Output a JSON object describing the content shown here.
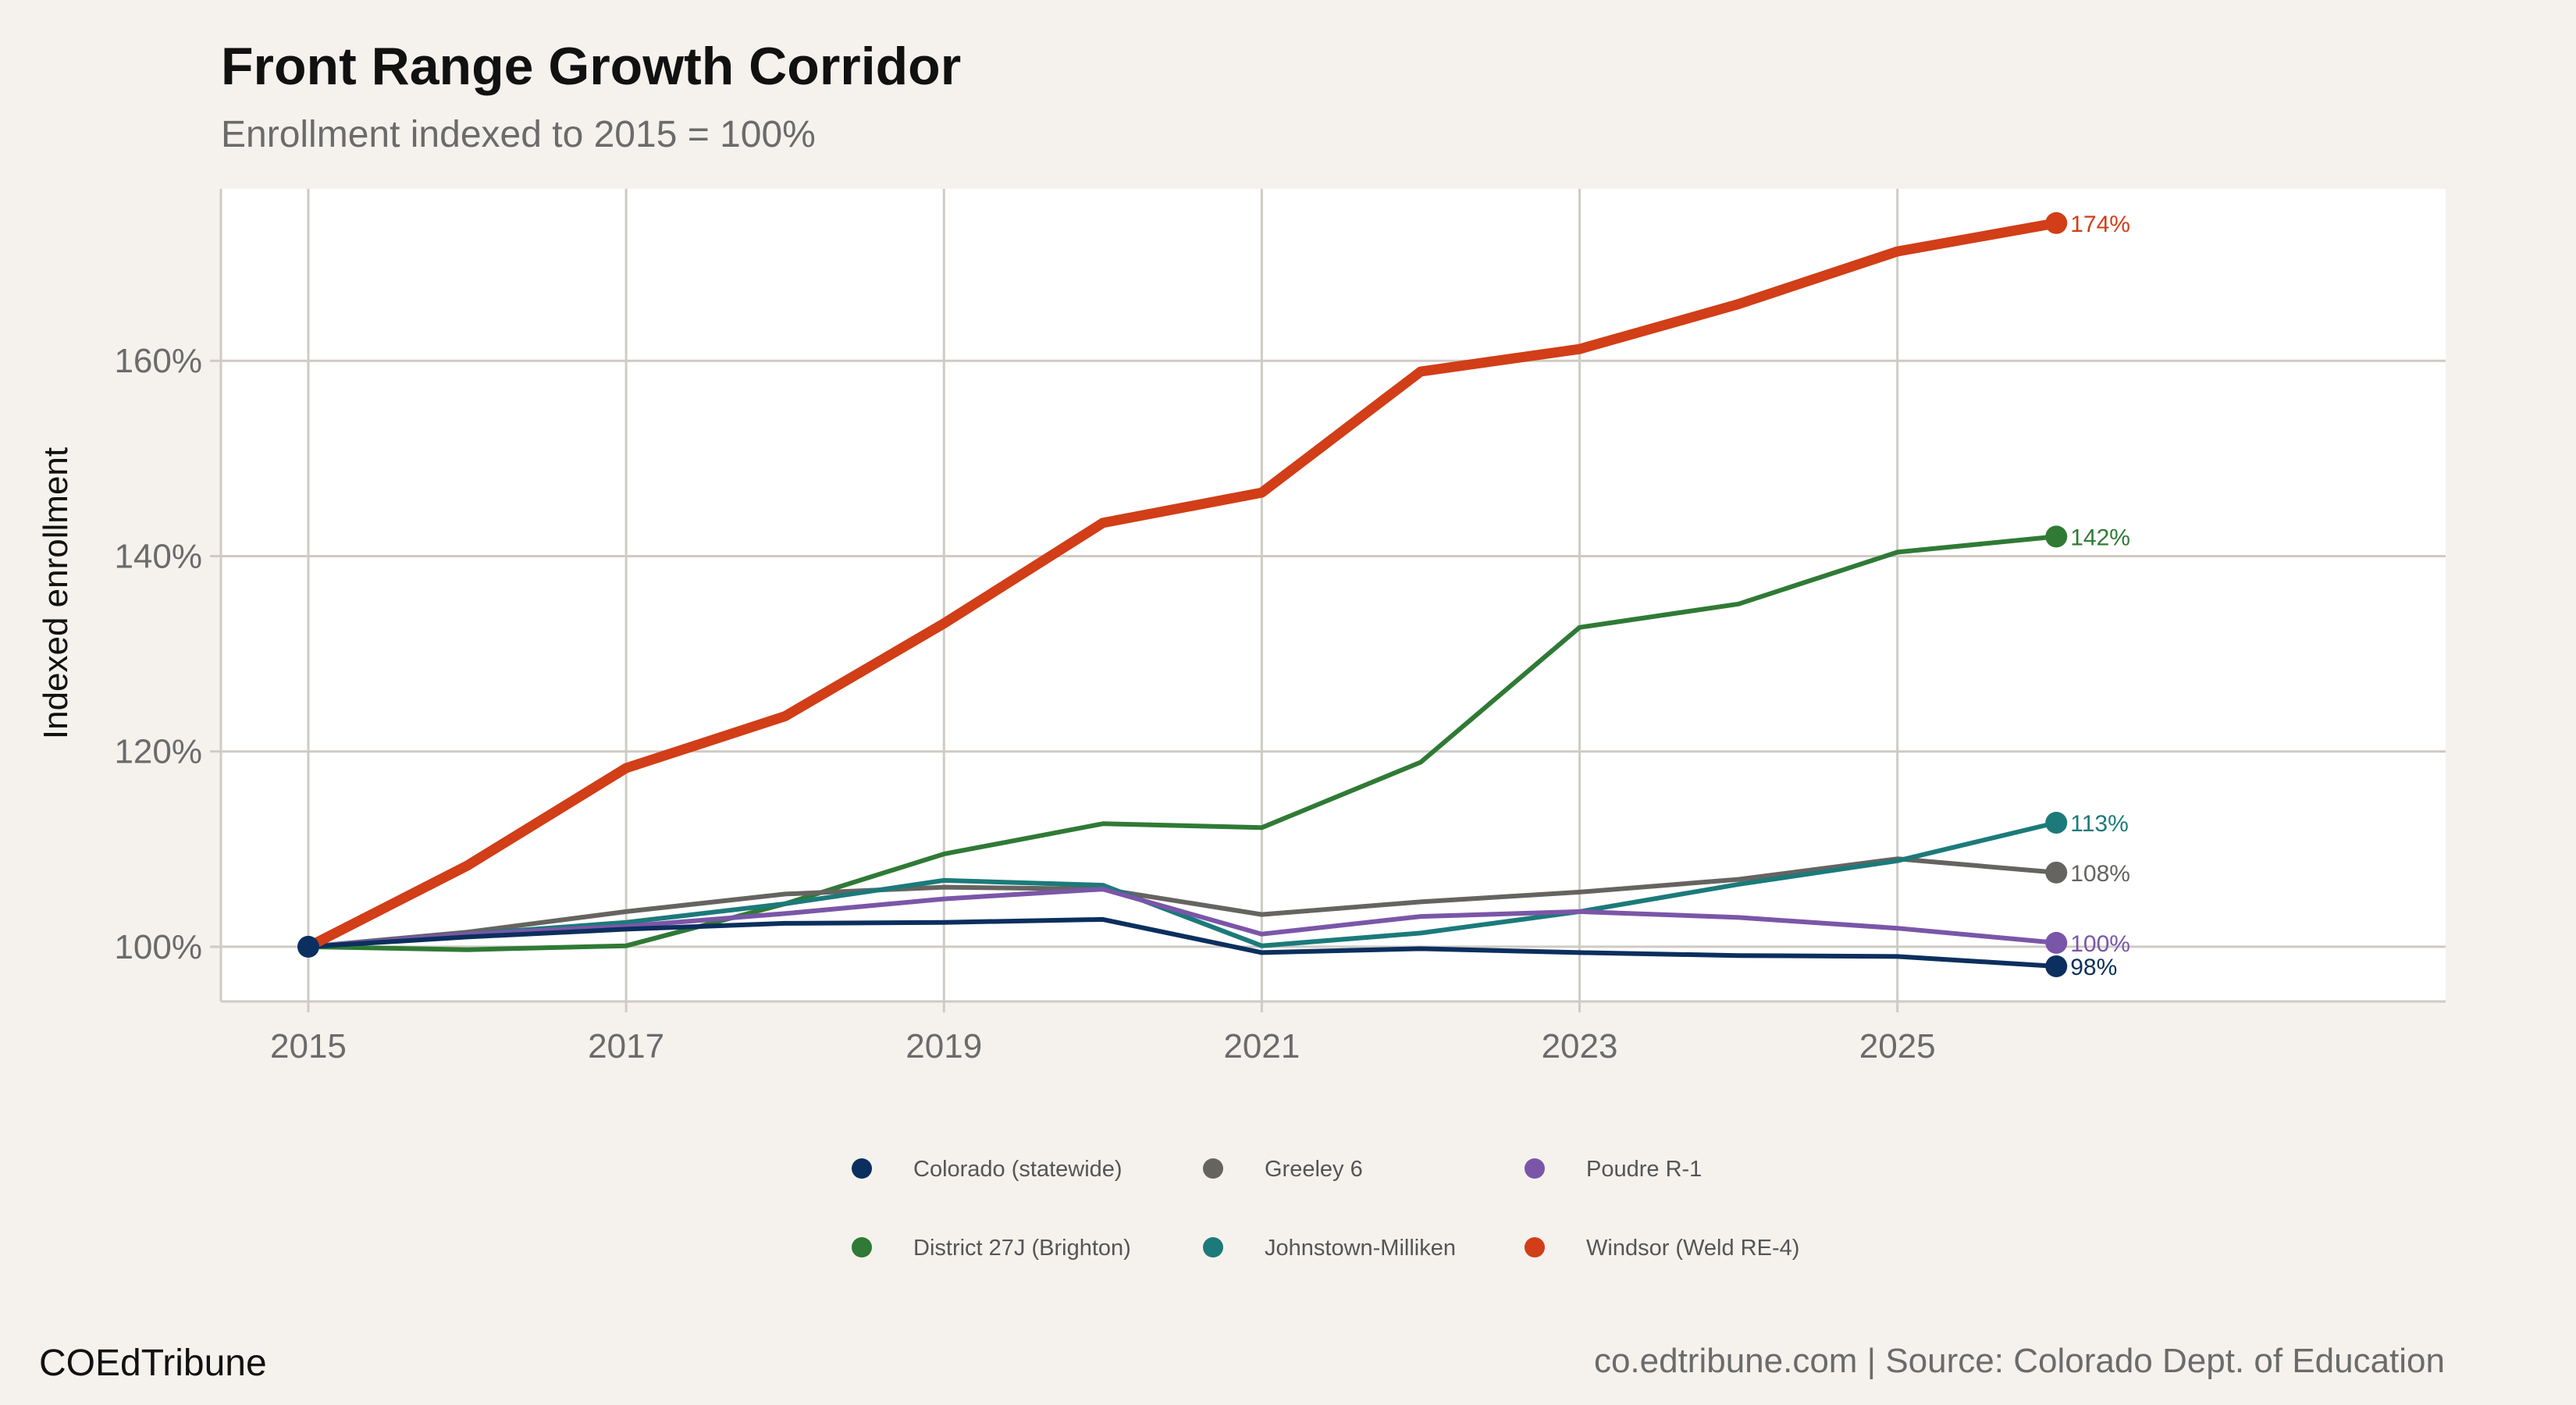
{
  "chart_data": {
    "type": "line",
    "title": "Front Range Growth Corridor",
    "subtitle": "Enrollment indexed to 2015 = 100%",
    "ylabel": "Indexed enrollment",
    "xlabel": "",
    "x": [
      2015,
      2016,
      2017,
      2018,
      2019,
      2020,
      2021,
      2022,
      2023,
      2024,
      2025,
      2026
    ],
    "xlim": [
      2014.45,
      2028.45
    ],
    "ylim": [
      94.4,
      177.6
    ],
    "x_ticks": [
      2015,
      2017,
      2019,
      2021,
      2023,
      2025
    ],
    "y_ticks": [
      100,
      120,
      140,
      160
    ],
    "x_tick_labels": [
      "2015",
      "2017",
      "2019",
      "2021",
      "2023",
      "2025"
    ],
    "y_tick_labels": [
      "100%",
      "120%",
      "140%",
      "160%"
    ],
    "grid": true,
    "legend_position": "bottom",
    "series": [
      {
        "name": "Colorado (statewide)",
        "color": "#0b2f5e",
        "values": [
          100,
          101.0,
          101.8,
          102.4,
          102.5,
          102.8,
          99.4,
          99.8,
          99.4,
          99.1,
          99.0,
          98.0
        ],
        "end_label": "98%"
      },
      {
        "name": "District 27J (Brighton)",
        "color": "#2f7a35",
        "values": [
          100,
          99.7,
          100.1,
          104.4,
          109.5,
          112.6,
          112.2,
          118.9,
          132.7,
          135.1,
          140.4,
          142.0
        ],
        "end_label": "142%"
      },
      {
        "name": "Greeley 6",
        "color": "#666460",
        "values": [
          100,
          101.5,
          103.6,
          105.4,
          106.1,
          105.9,
          103.3,
          104.6,
          105.6,
          106.9,
          109.0,
          107.6
        ],
        "end_label": "108%"
      },
      {
        "name": "Johnstown-Milliken",
        "color": "#1c7a7a",
        "values": [
          100,
          101.3,
          102.5,
          104.4,
          106.8,
          106.3,
          100.1,
          101.4,
          103.6,
          106.4,
          108.8,
          112.7
        ],
        "end_label": "113%"
      },
      {
        "name": "Poudre R-1",
        "color": "#7a56a8",
        "values": [
          100,
          101.3,
          102.1,
          103.4,
          104.9,
          105.9,
          101.3,
          103.1,
          103.6,
          103.0,
          101.9,
          100.4
        ],
        "end_label": "100%"
      },
      {
        "name": "Windsor (Weld RE-4)",
        "color": "#d13e17",
        "values": [
          100,
          108.3,
          118.3,
          123.6,
          133.1,
          143.4,
          146.5,
          158.9,
          161.2,
          165.8,
          171.2,
          174.1
        ],
        "end_label": "174%"
      }
    ]
  },
  "footer": {
    "brand": "COEdTribune",
    "source": "co.edtribune.com | Source: Colorado Dept. of Education"
  },
  "colors": {
    "background": "#f5f2ee",
    "panel": "#ffffff",
    "grid": "#cfcbc4"
  }
}
